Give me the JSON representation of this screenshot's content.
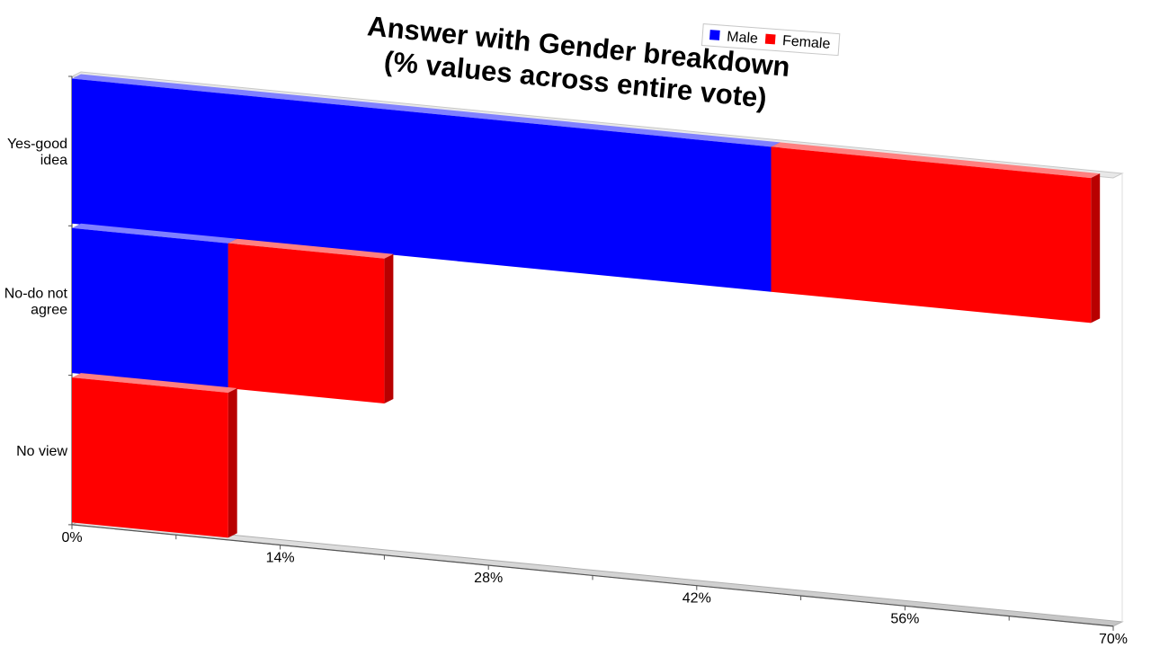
{
  "chart_data": {
    "type": "bar",
    "orientation": "horizontal",
    "stacked": true,
    "three_d": true,
    "title": [
      "Answer with Gender breakdown",
      "(% values across entire vote)"
    ],
    "categories": [
      "Yes-good idea",
      "No-do not agree",
      "No view"
    ],
    "category_label_lines": [
      [
        "Yes-good",
        "idea"
      ],
      [
        "No-do not",
        "agree"
      ],
      [
        "No view"
      ]
    ],
    "series": [
      {
        "name": "Male",
        "color": "#0000ff",
        "values": [
          47,
          10.5,
          0
        ]
      },
      {
        "name": "Female",
        "color": "#ff0000",
        "values": [
          21.5,
          10.5,
          10.5
        ]
      }
    ],
    "xlim": [
      0,
      70
    ],
    "x_ticks": [
      0,
      14,
      28,
      42,
      56,
      70
    ],
    "x_tick_labels": [
      "0%",
      "14%",
      "28%",
      "42%",
      "56%",
      "70%"
    ],
    "legend_position": "top-right",
    "grid": false
  }
}
